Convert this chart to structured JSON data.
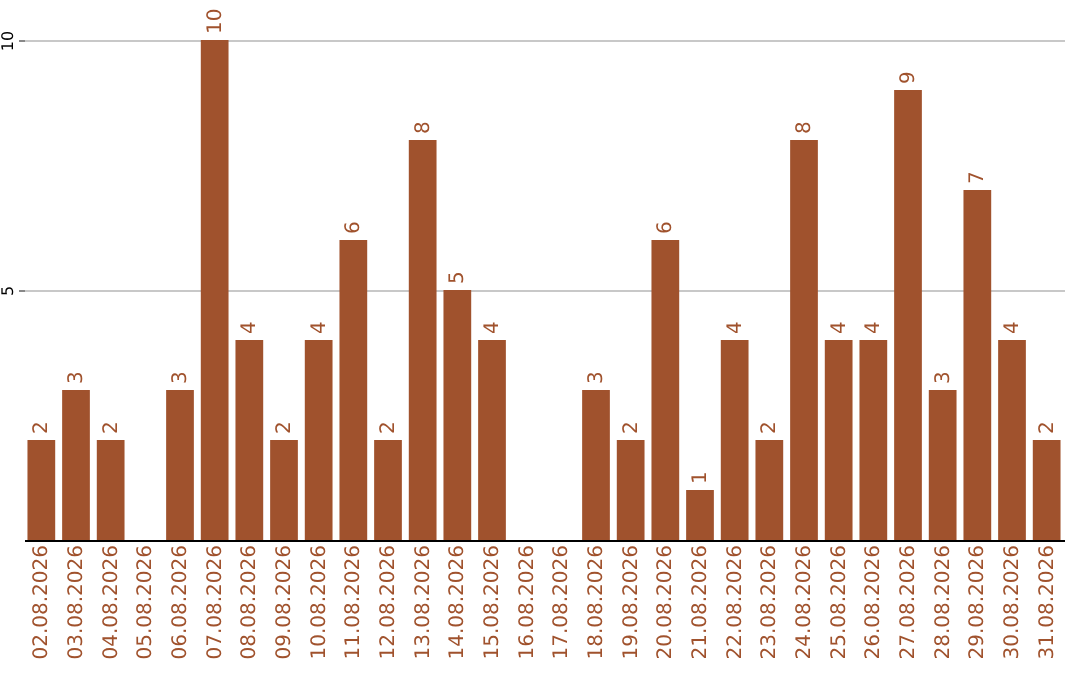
{
  "chart_data": {
    "type": "bar",
    "categories": [
      "02.08.2026",
      "03.08.2026",
      "04.08.2026",
      "05.08.2026",
      "06.08.2026",
      "07.08.2026",
      "08.08.2026",
      "09.08.2026",
      "10.08.2026",
      "11.08.2026",
      "12.08.2026",
      "13.08.2026",
      "14.08.2026",
      "15.08.2026",
      "16.08.2026",
      "17.08.2026",
      "18.08.2026",
      "19.08.2026",
      "20.08.2026",
      "21.08.2026",
      "22.08.2026",
      "23.08.2026",
      "24.08.2026",
      "25.08.2026",
      "26.08.2026",
      "27.08.2026",
      "28.08.2026",
      "29.08.2026",
      "30.08.2026",
      "31.08.2026"
    ],
    "values": [
      2,
      3,
      2,
      null,
      3,
      10,
      4,
      2,
      4,
      6,
      2,
      8,
      5,
      4,
      null,
      null,
      3,
      2,
      6,
      1,
      4,
      2,
      8,
      4,
      4,
      9,
      3,
      7,
      4,
      2
    ],
    "color": "#a0522d",
    "ylim": [
      0,
      10
    ],
    "yticks": [
      5,
      10
    ],
    "grid": "y",
    "data_labels": true
  }
}
